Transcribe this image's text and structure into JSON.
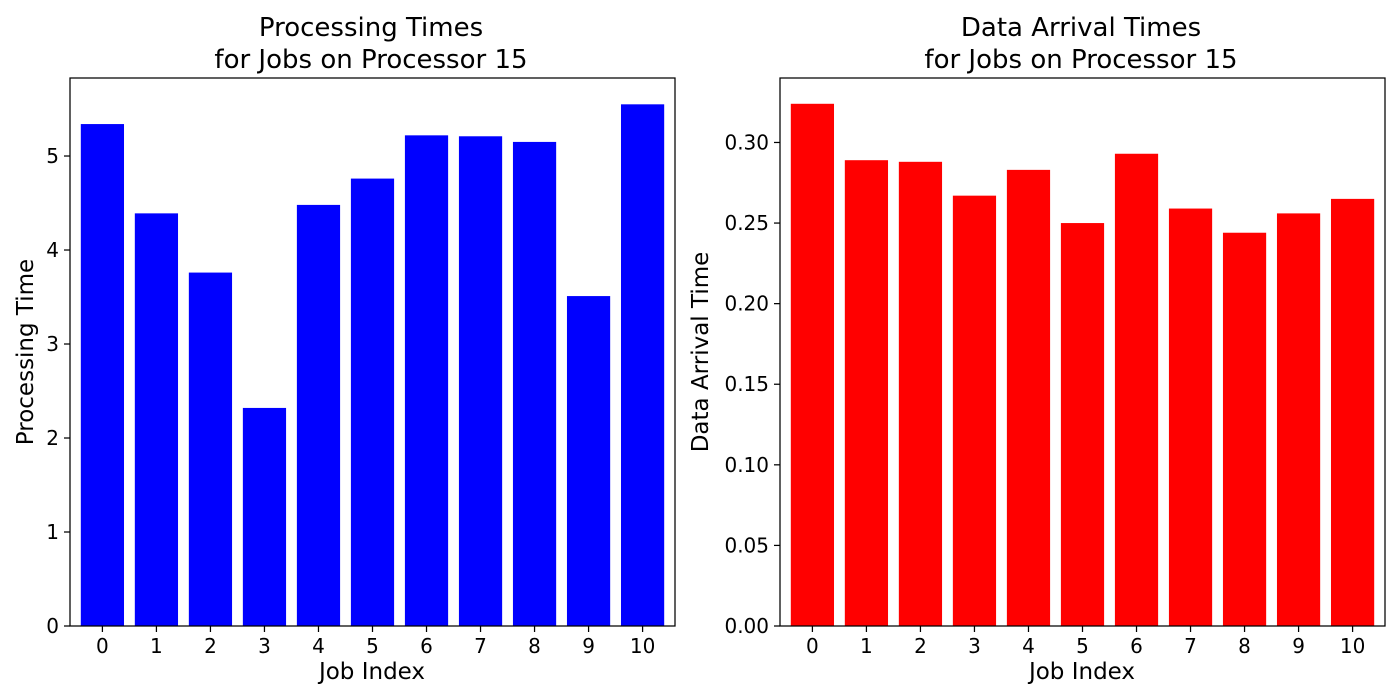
{
  "chart_data": [
    {
      "type": "bar",
      "title_lines": [
        "Processing Times",
        "for Jobs on Processor 15"
      ],
      "xlabel": "Job Index",
      "ylabel": "Processing Time",
      "categories": [
        "0",
        "1",
        "2",
        "3",
        "4",
        "5",
        "6",
        "7",
        "8",
        "9",
        "10"
      ],
      "values": [
        5.34,
        4.39,
        3.76,
        2.32,
        4.48,
        4.76,
        5.22,
        5.21,
        5.15,
        3.51,
        5.55
      ],
      "yticks": [
        "0",
        "1",
        "2",
        "3",
        "4",
        "5"
      ],
      "ylim": [
        0,
        5.83
      ],
      "color": "#0000ff",
      "grid": false
    },
    {
      "type": "bar",
      "title_lines": [
        "Data Arrival Times",
        "for Jobs on Processor 15"
      ],
      "xlabel": "Job Index",
      "ylabel": "Data Arrival Time",
      "categories": [
        "0",
        "1",
        "2",
        "3",
        "4",
        "5",
        "6",
        "7",
        "8",
        "9",
        "10"
      ],
      "values": [
        0.324,
        0.289,
        0.288,
        0.267,
        0.283,
        0.25,
        0.293,
        0.259,
        0.244,
        0.256,
        0.265
      ],
      "yticks": [
        "0.00",
        "0.05",
        "0.10",
        "0.15",
        "0.20",
        "0.25",
        "0.30"
      ],
      "ylim": [
        0,
        0.34
      ],
      "color": "#ff0000",
      "grid": false
    }
  ]
}
